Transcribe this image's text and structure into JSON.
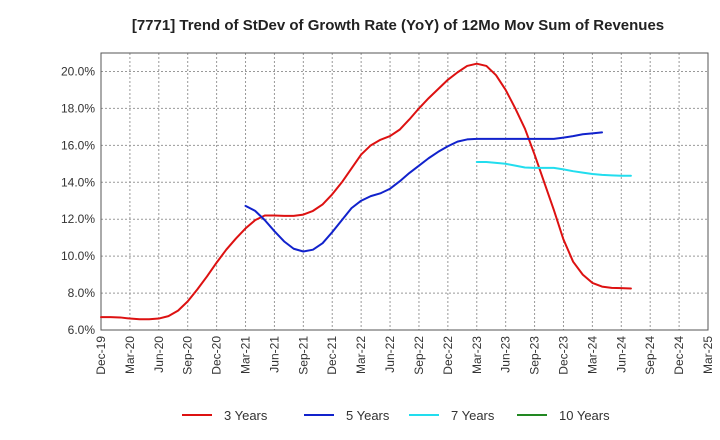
{
  "chart_data": {
    "type": "line",
    "title": "[7771]  Trend of StDev of Growth Rate (YoY) of 12Mo Mov Sum of Revenues",
    "xlabel": "",
    "ylabel": "",
    "ylim": [
      6.0,
      21.0
    ],
    "yticks": [
      6.0,
      8.0,
      10.0,
      12.0,
      14.0,
      16.0,
      18.0,
      20.0
    ],
    "ytick_labels": [
      "6.0%",
      "8.0%",
      "10.0%",
      "12.0%",
      "14.0%",
      "16.0%",
      "18.0%",
      "20.0%"
    ],
    "xticks": [
      "Dec-19",
      "Mar-20",
      "Jun-20",
      "Sep-20",
      "Dec-20",
      "Mar-21",
      "Jun-21",
      "Sep-21",
      "Dec-21",
      "Mar-22",
      "Jun-22",
      "Sep-22",
      "Dec-22",
      "Mar-23",
      "Jun-23",
      "Sep-23",
      "Dec-23",
      "Mar-24",
      "Jun-24",
      "Sep-24",
      "Dec-24",
      "Mar-25"
    ],
    "grid": true,
    "legend_position": "bottom",
    "series": [
      {
        "name": "3 Years",
        "color": "#dd1111",
        "start_index": 0,
        "values": [
          6.7,
          6.7,
          6.68,
          6.62,
          6.58,
          6.58,
          6.62,
          6.75,
          7.05,
          7.55,
          8.2,
          8.9,
          9.65,
          10.35,
          10.95,
          11.5,
          11.95,
          12.2,
          12.2,
          12.18,
          12.18,
          12.25,
          12.45,
          12.8,
          13.35,
          14.0,
          14.75,
          15.5,
          16.0,
          16.3,
          16.5,
          16.85,
          17.4,
          18.0,
          18.55,
          19.05,
          19.55,
          19.95,
          20.3,
          20.42,
          20.3,
          19.8,
          19.0,
          18.0,
          16.9,
          15.5,
          14.0,
          12.5,
          10.9,
          9.7,
          9.0,
          8.55,
          8.35,
          8.28,
          8.27,
          8.25
        ]
      },
      {
        "name": "5 Years",
        "color": "#1122cc",
        "start_index": 15,
        "values": [
          12.72,
          12.45,
          11.95,
          11.35,
          10.8,
          10.4,
          10.25,
          10.35,
          10.7,
          11.3,
          11.95,
          12.6,
          13.0,
          13.25,
          13.4,
          13.65,
          14.05,
          14.5,
          14.9,
          15.3,
          15.65,
          15.95,
          16.2,
          16.32,
          16.35,
          16.35,
          16.35,
          16.35,
          16.35,
          16.35,
          16.35,
          16.35,
          16.35,
          16.42,
          16.5,
          16.6,
          16.65,
          16.7
        ]
      },
      {
        "name": "7 Years",
        "color": "#22ddee",
        "start_index": 39,
        "values": [
          15.1,
          15.1,
          15.05,
          15.0,
          14.9,
          14.8,
          14.78,
          14.78,
          14.78,
          14.7,
          14.6,
          14.52,
          14.45,
          14.4,
          14.37,
          14.35,
          14.35
        ]
      },
      {
        "name": "10 Years",
        "color": "#228822",
        "start_index": 0,
        "values": []
      }
    ]
  }
}
